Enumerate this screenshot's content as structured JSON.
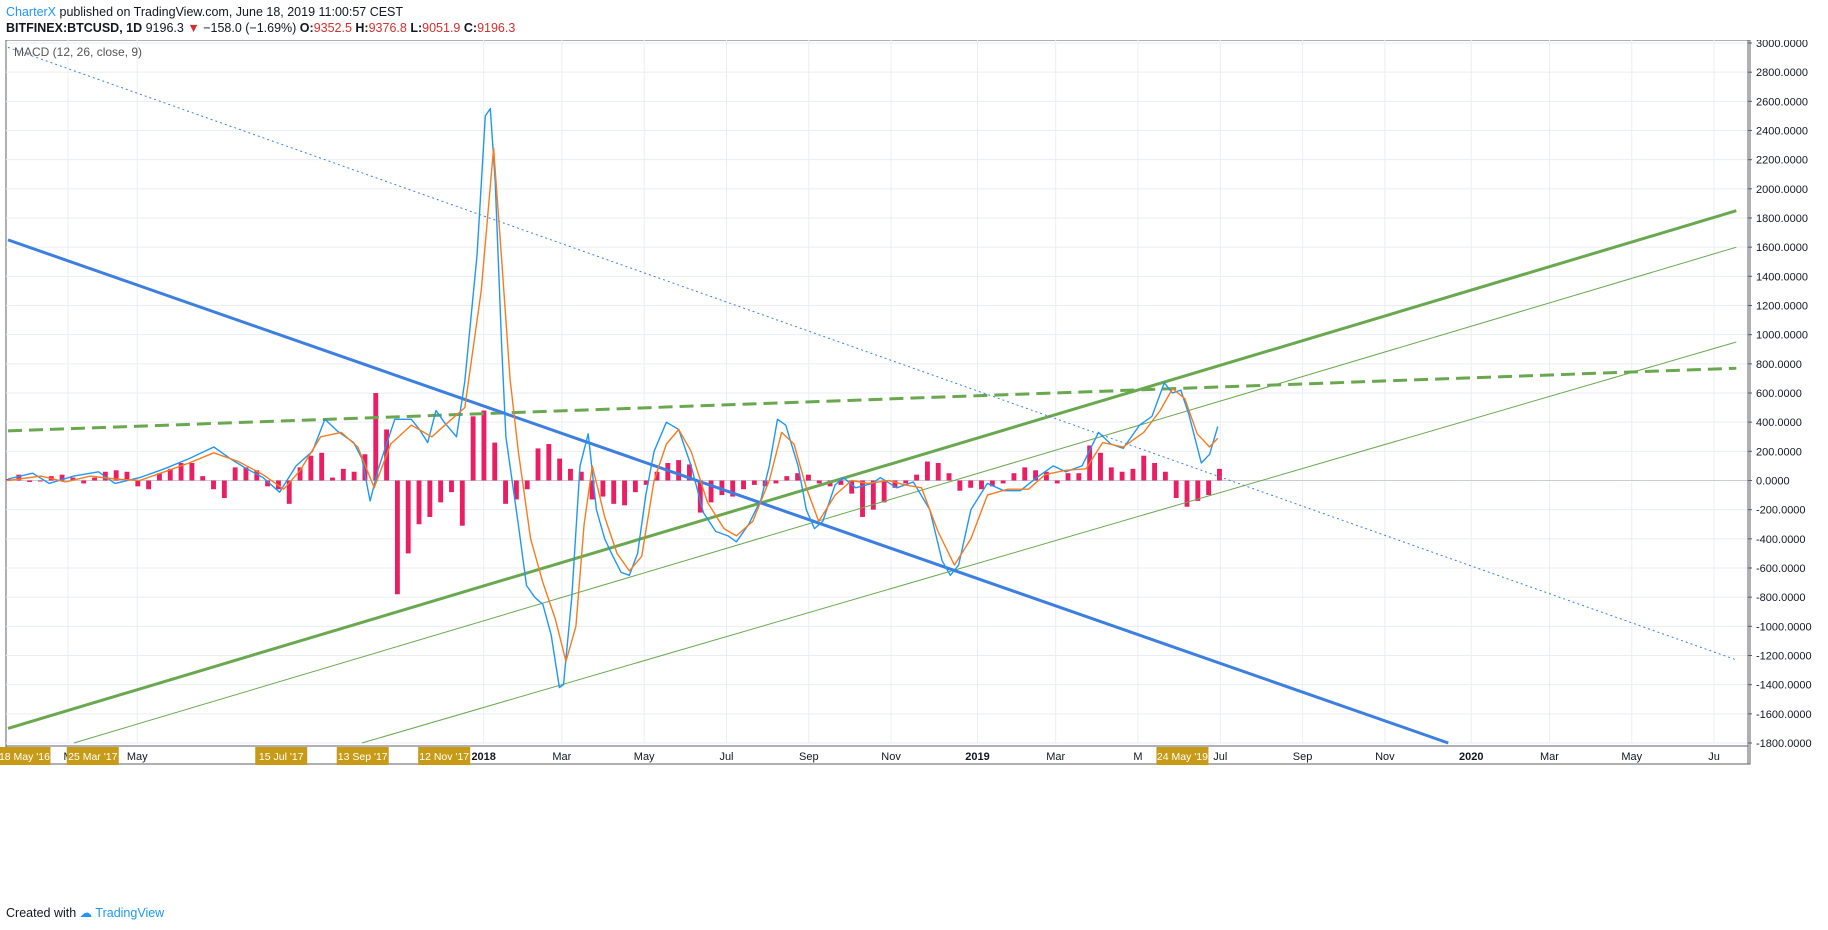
{
  "header": {
    "author": "CharterX",
    "published": "published on TradingView.com, June 18, 2019 11:00:57 CEST",
    "symbol": "BITFINEX:BTCUSD, 1D",
    "last": "9196.3",
    "change": "−158.0 (−1.69%)",
    "o_label": "O:",
    "o_value": "9352.5",
    "h_label": "H:",
    "h_value": "9376.8",
    "l_label": "L:",
    "l_value": "9051.9",
    "c_label": "C:",
    "c_value": "9196.3"
  },
  "footer": {
    "created": "Created with",
    "brand": "TradingView"
  },
  "colors": {
    "macd": "#2196f3",
    "signal": "#f57c20",
    "histogram": "#e91e63",
    "trendline_green": "#6aa84f",
    "trendline_blue": "#3d7fe0",
    "grid": "#eaeef3",
    "date_badge": "#c79b18"
  },
  "chart_data": {
    "type": "line",
    "title": "MACD (12, 26, close, 9)",
    "ylim": [
      -1800,
      3000
    ],
    "y_ticks": [
      "3000.0000",
      "2800.0000",
      "2600.0000",
      "2400.0000",
      "2200.0000",
      "2000.0000",
      "1800.0000",
      "1600.0000",
      "1400.0000",
      "1200.0000",
      "1000.0000",
      "800.0000",
      "600.0000",
      "400.0000",
      "200.0000",
      "0.0000",
      "-200.0000",
      "-400.0000",
      "-600.0000",
      "-800.0000",
      "-1000.0000",
      "-1200.0000",
      "-1400.0000",
      "-1600.0000",
      "-1800.0000"
    ],
    "x_ticks": [
      {
        "label": "M",
        "t": 0.73
      },
      {
        "label": "May",
        "t": 1.57
      },
      {
        "label": "2018",
        "t": 5.78
      },
      {
        "label": "Mar",
        "t": 6.73
      },
      {
        "label": "May",
        "t": 7.73
      },
      {
        "label": "Jul",
        "t": 8.73
      },
      {
        "label": "Sep",
        "t": 9.73
      },
      {
        "label": "Nov",
        "t": 10.73
      },
      {
        "label": "2019",
        "t": 11.78
      },
      {
        "label": "Mar",
        "t": 12.73
      },
      {
        "label": "M",
        "t": 13.73
      },
      {
        "label": "Jul",
        "t": 14.73
      },
      {
        "label": "Sep",
        "t": 15.73
      },
      {
        "label": "Nov",
        "t": 16.73
      },
      {
        "label": "2020",
        "t": 17.78
      },
      {
        "label": "Mar",
        "t": 18.73
      },
      {
        "label": "May",
        "t": 19.73
      },
      {
        "label": "Ju",
        "t": 20.73
      }
    ],
    "date_badges": [
      {
        "label": "18 May '16",
        "t": 0.2
      },
      {
        "label": "25 Mar '17",
        "t": 1.03
      },
      {
        "label": "15 Jul '17",
        "t": 3.32
      },
      {
        "label": "13 Sep '17",
        "t": 4.31
      },
      {
        "label": "12 Nov '17",
        "t": 5.3
      },
      {
        "label": "24 May '19",
        "t": 14.27
      }
    ],
    "series": [
      {
        "name": "MACD",
        "points": [
          [
            0,
            10
          ],
          [
            0.3,
            50
          ],
          [
            0.5,
            -20
          ],
          [
            0.8,
            30
          ],
          [
            1.1,
            60
          ],
          [
            1.3,
            -20
          ],
          [
            1.6,
            20
          ],
          [
            1.9,
            80
          ],
          [
            2.2,
            150
          ],
          [
            2.5,
            230
          ],
          [
            2.7,
            150
          ],
          [
            2.9,
            80
          ],
          [
            3.1,
            20
          ],
          [
            3.3,
            -80
          ],
          [
            3.5,
            100
          ],
          [
            3.7,
            200
          ],
          [
            3.85,
            420
          ],
          [
            4.0,
            340
          ],
          [
            4.2,
            260
          ],
          [
            4.3,
            150
          ],
          [
            4.4,
            -140
          ],
          [
            4.5,
            80
          ],
          [
            4.7,
            420
          ],
          [
            4.9,
            420
          ],
          [
            5.0,
            350
          ],
          [
            5.1,
            260
          ],
          [
            5.2,
            480
          ],
          [
            5.3,
            400
          ],
          [
            5.45,
            300
          ],
          [
            5.55,
            680
          ],
          [
            5.7,
            1550
          ],
          [
            5.8,
            2500
          ],
          [
            5.86,
            2550
          ],
          [
            5.92,
            2050
          ],
          [
            6.0,
            900
          ],
          [
            6.05,
            300
          ],
          [
            6.1,
            100
          ],
          [
            6.2,
            -300
          ],
          [
            6.3,
            -720
          ],
          [
            6.4,
            -800
          ],
          [
            6.5,
            -850
          ],
          [
            6.6,
            -1060
          ],
          [
            6.7,
            -1420
          ],
          [
            6.75,
            -1400
          ],
          [
            6.85,
            -800
          ],
          [
            6.95,
            100
          ],
          [
            7.05,
            320
          ],
          [
            7.15,
            -200
          ],
          [
            7.25,
            -400
          ],
          [
            7.35,
            -520
          ],
          [
            7.45,
            -630
          ],
          [
            7.55,
            -650
          ],
          [
            7.65,
            -500
          ],
          [
            7.75,
            -100
          ],
          [
            7.85,
            200
          ],
          [
            8.0,
            400
          ],
          [
            8.15,
            350
          ],
          [
            8.3,
            100
          ],
          [
            8.45,
            -220
          ],
          [
            8.6,
            -350
          ],
          [
            8.75,
            -380
          ],
          [
            8.85,
            -420
          ],
          [
            9.0,
            -300
          ],
          [
            9.15,
            -130
          ],
          [
            9.25,
            100
          ],
          [
            9.35,
            420
          ],
          [
            9.45,
            380
          ],
          [
            9.6,
            100
          ],
          [
            9.7,
            -200
          ],
          [
            9.8,
            -330
          ],
          [
            9.9,
            -280
          ],
          [
            10.05,
            -30
          ],
          [
            10.15,
            20
          ],
          [
            10.3,
            -50
          ],
          [
            10.5,
            -20
          ],
          [
            10.6,
            20
          ],
          [
            10.8,
            -50
          ],
          [
            11.0,
            -10
          ],
          [
            11.2,
            -200
          ],
          [
            11.35,
            -550
          ],
          [
            11.45,
            -650
          ],
          [
            11.55,
            -580
          ],
          [
            11.7,
            -200
          ],
          [
            11.9,
            -20
          ],
          [
            12.1,
            -70
          ],
          [
            12.3,
            -70
          ],
          [
            12.5,
            20
          ],
          [
            12.7,
            100
          ],
          [
            12.85,
            60
          ],
          [
            13.05,
            100
          ],
          [
            13.25,
            330
          ],
          [
            13.4,
            250
          ],
          [
            13.55,
            220
          ],
          [
            13.75,
            380
          ],
          [
            13.9,
            440
          ],
          [
            14.05,
            670
          ],
          [
            14.15,
            600
          ],
          [
            14.25,
            620
          ],
          [
            14.35,
            450
          ],
          [
            14.5,
            120
          ],
          [
            14.6,
            180
          ],
          [
            14.7,
            370
          ]
        ]
      },
      {
        "name": "Signal",
        "points": [
          [
            0,
            0
          ],
          [
            0.4,
            30
          ],
          [
            0.7,
            -10
          ],
          [
            1.0,
            30
          ],
          [
            1.3,
            10
          ],
          [
            1.6,
            0
          ],
          [
            1.9,
            60
          ],
          [
            2.2,
            120
          ],
          [
            2.5,
            190
          ],
          [
            2.8,
            130
          ],
          [
            3.1,
            40
          ],
          [
            3.35,
            -60
          ],
          [
            3.55,
            70
          ],
          [
            3.8,
            300
          ],
          [
            4.05,
            330
          ],
          [
            4.25,
            230
          ],
          [
            4.45,
            -50
          ],
          [
            4.65,
            250
          ],
          [
            4.9,
            380
          ],
          [
            5.15,
            300
          ],
          [
            5.35,
            400
          ],
          [
            5.55,
            500
          ],
          [
            5.75,
            1300
          ],
          [
            5.9,
            2280
          ],
          [
            6.0,
            1500
          ],
          [
            6.1,
            700
          ],
          [
            6.2,
            200
          ],
          [
            6.35,
            -400
          ],
          [
            6.5,
            -700
          ],
          [
            6.65,
            -950
          ],
          [
            6.78,
            -1240
          ],
          [
            6.9,
            -1000
          ],
          [
            7.0,
            -300
          ],
          [
            7.1,
            100
          ],
          [
            7.25,
            -250
          ],
          [
            7.4,
            -500
          ],
          [
            7.55,
            -620
          ],
          [
            7.7,
            -520
          ],
          [
            7.85,
            0
          ],
          [
            8.0,
            250
          ],
          [
            8.15,
            350
          ],
          [
            8.3,
            200
          ],
          [
            8.5,
            -150
          ],
          [
            8.7,
            -330
          ],
          [
            8.85,
            -380
          ],
          [
            9.05,
            -280
          ],
          [
            9.25,
            0
          ],
          [
            9.4,
            330
          ],
          [
            9.55,
            250
          ],
          [
            9.7,
            -50
          ],
          [
            9.85,
            -280
          ],
          [
            10.05,
            -100
          ],
          [
            10.25,
            0
          ],
          [
            10.45,
            -20
          ],
          [
            10.7,
            0
          ],
          [
            10.9,
            -30
          ],
          [
            11.1,
            -50
          ],
          [
            11.3,
            -350
          ],
          [
            11.5,
            -580
          ],
          [
            11.7,
            -400
          ],
          [
            11.9,
            -100
          ],
          [
            12.15,
            -60
          ],
          [
            12.4,
            -60
          ],
          [
            12.6,
            40
          ],
          [
            12.85,
            70
          ],
          [
            13.1,
            80
          ],
          [
            13.3,
            260
          ],
          [
            13.55,
            230
          ],
          [
            13.8,
            330
          ],
          [
            14.0,
            480
          ],
          [
            14.15,
            630
          ],
          [
            14.3,
            560
          ],
          [
            14.45,
            320
          ],
          [
            14.6,
            230
          ],
          [
            14.7,
            290
          ]
        ]
      }
    ],
    "histogram": [
      10,
      40,
      -10,
      0,
      30,
      40,
      20,
      -20,
      20,
      60,
      70,
      60,
      -40,
      -60,
      50,
      80,
      120,
      120,
      30,
      -60,
      -120,
      90,
      90,
      70,
      -40,
      -60,
      -160,
      90,
      170,
      190,
      20,
      80,
      60,
      180,
      600,
      350,
      -780,
      -500,
      -300,
      -250,
      -150,
      -80,
      -310,
      440,
      480,
      260,
      -160,
      -130,
      -60,
      220,
      250,
      150,
      80,
      60,
      -130,
      -110,
      -160,
      -170,
      -80,
      -30,
      60,
      120,
      140,
      110,
      -220,
      -150,
      -100,
      -110,
      -60,
      -30,
      -40,
      -20,
      30,
      50,
      40,
      -20,
      -40,
      -30,
      -90,
      -250,
      -200,
      -150,
      -50,
      -20,
      40,
      130,
      120,
      50,
      -70,
      -50,
      -60,
      -40,
      -20,
      50,
      90,
      70,
      60,
      -20,
      50,
      50,
      240,
      190,
      90,
      60,
      80,
      170,
      120,
      60,
      -120,
      -180,
      -140,
      -100,
      80
    ],
    "trendlines": [
      {
        "name": "green-support-thick",
        "style": "solid",
        "from": [
          0,
          -1700
        ],
        "to": [
          21,
          1850
        ]
      },
      {
        "name": "green-dashed",
        "style": "dashed",
        "from": [
          0,
          340
        ],
        "to": [
          21,
          770
        ]
      },
      {
        "name": "green-channel-upper",
        "style": "solid-thin",
        "from": [
          0.8,
          -1800
        ],
        "to": [
          21,
          1600
        ]
      },
      {
        "name": "green-channel-lower",
        "style": "solid-thin",
        "from": [
          4.3,
          -1800
        ],
        "to": [
          21,
          950
        ]
      },
      {
        "name": "blue-resistance-thick",
        "style": "solid",
        "from": [
          0,
          1650
        ],
        "to": [
          17.5,
          -1800
        ]
      },
      {
        "name": "blue-dotted",
        "style": "dotted",
        "from": [
          0,
          2970
        ],
        "to": [
          21,
          -1230
        ]
      }
    ]
  }
}
